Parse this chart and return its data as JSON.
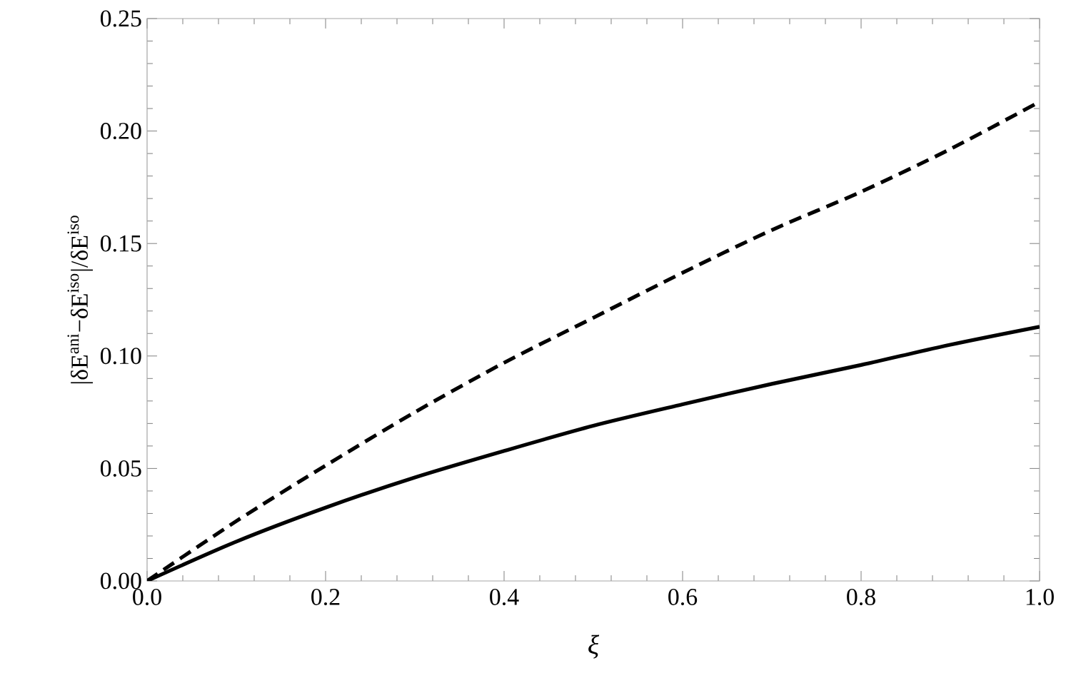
{
  "chart_data": {
    "type": "line",
    "xlabel": "ξ",
    "ylabel": "|δE$^{ani}$−δE$^{iso}$|/δE$^{iso}$",
    "xlim": [
      0,
      1
    ],
    "ylim": [
      0,
      0.25
    ],
    "xticks": [
      {
        "value": 0,
        "label": "0.0"
      },
      0.2,
      0.4,
      0.6,
      0.8,
      {
        "value": 1,
        "label": "1.0"
      }
    ],
    "yticks": [
      {
        "value": 0,
        "label": "0.00"
      },
      0.05,
      {
        "value": 0.1,
        "label": "0.10"
      },
      0.15,
      {
        "value": 0.2,
        "label": "0.20"
      },
      0.25
    ],
    "grid": false,
    "marker": "none",
    "series": [
      {
        "color": "#000000",
        "line_style": "solid",
        "x": [
          0,
          0.1,
          0.2,
          0.3,
          0.4,
          0.5,
          0.6,
          0.7,
          0.8,
          0.9,
          1.0
        ],
        "values": [
          0,
          0.0175,
          0.0326,
          0.046,
          0.0578,
          0.069,
          0.0785,
          0.0876,
          0.096,
          0.105,
          0.113
        ]
      },
      {
        "color": "#000000",
        "line_style": "dashed",
        "x": [
          0,
          0.1,
          0.2,
          0.3,
          0.4,
          0.5,
          0.6,
          0.7,
          0.8,
          0.9,
          1.0
        ],
        "values": [
          0,
          0.0266,
          0.0513,
          0.075,
          0.097,
          0.117,
          0.137,
          0.156,
          0.173,
          0.192,
          0.213
        ]
      }
    ]
  }
}
